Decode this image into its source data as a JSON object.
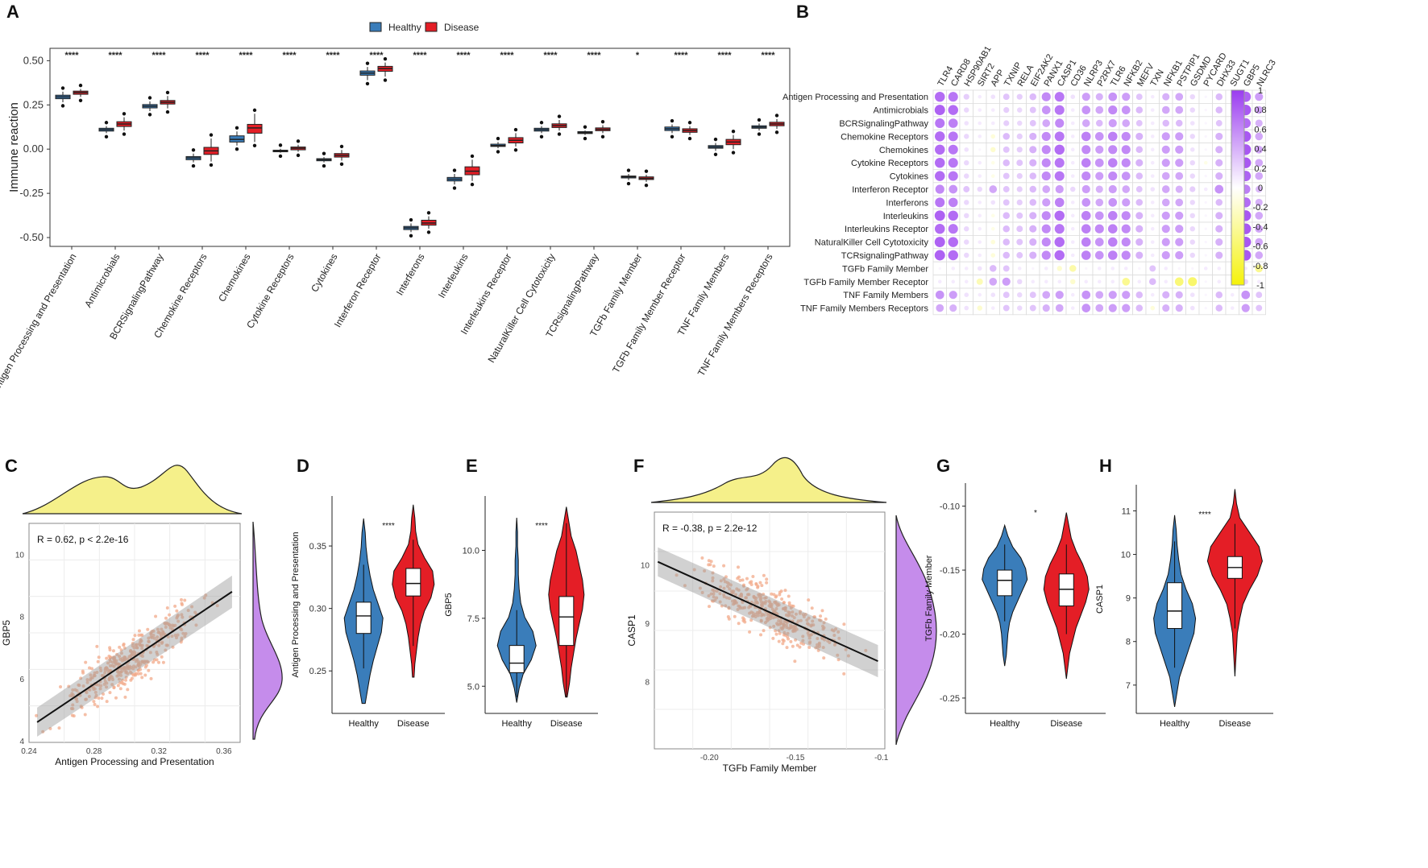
{
  "panel_labels": [
    "A",
    "B",
    "C",
    "D",
    "E",
    "F",
    "G",
    "H"
  ],
  "colors": {
    "healthy": "#3A7DBA",
    "disease": "#E41E26",
    "scatter": "#F2A98A",
    "top_density": "#F5F08A",
    "side_density": "#C58CEB",
    "corr_pos": "#9A3BF0",
    "corr_neg": "#F5F20A"
  },
  "chart_data": [
    {
      "id": "A",
      "type": "box",
      "ylabel": "Immune reaction",
      "xlabel": "",
      "ylim": [
        -0.55,
        0.57
      ],
      "yticks": [
        -0.5,
        -0.25,
        0,
        0.25,
        0.5
      ],
      "ytick_labels": [
        "-0.50",
        "-0.25",
        "0.00",
        "0.25",
        "0.50"
      ],
      "legend": [
        "Healthy",
        "Disease"
      ],
      "legend_position": "top-center",
      "categories": [
        "Antigen Processing and Presentation",
        "Antimicrobials",
        "BCRSignalingPathway",
        "Chemokine Receptors",
        "Chemokines",
        "Cytokine Receptors",
        "Cytokines",
        "Interferon Receptor",
        "Interferons",
        "Interleukins",
        "Interleukins Receptor",
        "NaturalKiller Cell Cytotoxicity",
        "TCRsignalingPathway",
        "TGFb Family Member",
        "TGFb Family Member Receptor",
        "TNF Family Members",
        "TNF Family Members Receptors"
      ],
      "significance": [
        "****",
        "****",
        "****",
        "****",
        "****",
        "****",
        "****",
        "****",
        "****",
        "****",
        "****",
        "****",
        "****",
        "*",
        "****",
        "****",
        "****"
      ],
      "series": [
        {
          "name": "Healthy",
          "boxes": [
            [
              0.265,
              0.285,
              0.295,
              0.305,
              0.325
            ],
            [
              0.09,
              0.102,
              0.11,
              0.118,
              0.13
            ],
            [
              0.215,
              0.233,
              0.243,
              0.252,
              0.27
            ],
            [
              -0.075,
              -0.06,
              -0.05,
              -0.042,
              -0.025
            ],
            [
              0.02,
              0.04,
              0.055,
              0.075,
              0.1
            ],
            [
              -0.02,
              -0.014,
              -0.01,
              -0.006,
              0.002
            ],
            [
              -0.075,
              -0.066,
              -0.06,
              -0.054,
              -0.045
            ],
            [
              0.39,
              0.418,
              0.43,
              0.442,
              0.465
            ],
            [
              -0.47,
              -0.455,
              -0.445,
              -0.437,
              -0.42
            ],
            [
              -0.2,
              -0.18,
              -0.17,
              -0.16,
              -0.14
            ],
            [
              0.005,
              0.015,
              0.02,
              0.028,
              0.04
            ],
            [
              0.09,
              0.102,
              0.11,
              0.118,
              0.13
            ],
            [
              0.08,
              0.088,
              0.093,
              0.099,
              0.105
            ],
            [
              -0.175,
              -0.163,
              -0.157,
              -0.152,
              -0.14
            ],
            [
              0.09,
              0.105,
              0.115,
              0.125,
              0.14
            ],
            [
              -0.01,
              0.005,
              0.012,
              0.02,
              0.035
            ],
            [
              0.105,
              0.118,
              0.125,
              0.132,
              0.145
            ]
          ]
        },
        {
          "name": "Disease",
          "boxes": [
            [
              0.295,
              0.31,
              0.32,
              0.328,
              0.34
            ],
            [
              0.105,
              0.128,
              0.142,
              0.155,
              0.18
            ],
            [
              0.23,
              0.255,
              0.265,
              0.275,
              0.3
            ],
            [
              -0.07,
              -0.03,
              -0.01,
              0.01,
              0.06
            ],
            [
              0.04,
              0.09,
              0.12,
              0.14,
              0.2
            ],
            [
              -0.015,
              -0.004,
              0.005,
              0.012,
              0.025
            ],
            [
              -0.065,
              -0.045,
              -0.035,
              -0.025,
              -0.005
            ],
            [
              0.41,
              0.44,
              0.455,
              0.468,
              0.49
            ],
            [
              -0.45,
              -0.43,
              -0.418,
              -0.402,
              -0.38
            ],
            [
              -0.18,
              -0.145,
              -0.125,
              -0.1,
              -0.06
            ],
            [
              0.015,
              0.035,
              0.05,
              0.065,
              0.09
            ],
            [
              0.105,
              0.122,
              0.133,
              0.143,
              0.165
            ],
            [
              0.09,
              0.104,
              0.112,
              0.12,
              0.135
            ],
            [
              -0.185,
              -0.172,
              -0.165,
              -0.157,
              -0.145
            ],
            [
              0.08,
              0.095,
              0.105,
              0.115,
              0.13
            ],
            [
              0.0,
              0.025,
              0.04,
              0.055,
              0.08
            ],
            [
              0.115,
              0.132,
              0.142,
              0.152,
              0.17
            ]
          ]
        }
      ]
    },
    {
      "id": "B",
      "type": "heatmap",
      "rows": [
        "Antigen Processing and Presentation",
        "Antimicrobials",
        "BCRSignalingPathway",
        "Chemokine Receptors",
        "Chemokines",
        "Cytokine Receptors",
        "Cytokines",
        "Interferon Receptor",
        "Interferons",
        "Interleukins",
        "Interleukins Receptor",
        "NaturalKiller Cell Cytotoxicity",
        "TCRsignalingPathway",
        "TGFb Family Member",
        "TGFb Family Member Receptor",
        "TNF Family Members",
        "TNF Family Members Receptors"
      ],
      "columns": [
        "TLR4",
        "CARD8",
        "HSP90AB1",
        "SIRT2",
        "APP",
        "TXNIP",
        "RELA",
        "EIF2AK2",
        "PANX1",
        "CASP1",
        "CD36",
        "NLRP3",
        "P2RX7",
        "TLR6",
        "NFKB2",
        "MEFV",
        "TXN",
        "NFKB1",
        "PSTPIP1",
        "GSDMD",
        "PYCARD",
        "DHX33",
        "SUGT1",
        "GBP5",
        "NLRC3"
      ],
      "colorbar_ticks": [
        "1",
        "0.8",
        "0.6",
        "0.4",
        "0.2",
        "0",
        "-0.2",
        "-0.4",
        "-0.6",
        "-0.8",
        "-1"
      ],
      "values": [
        [
          0.75,
          0.7,
          0.25,
          0.1,
          0.15,
          0.3,
          0.25,
          0.35,
          0.6,
          0.7,
          0.15,
          0.5,
          0.4,
          0.55,
          0.5,
          0.3,
          0.1,
          0.4,
          0.45,
          0.2,
          0.05,
          0.35,
          0.1,
          0.8,
          0.5
        ],
        [
          0.8,
          0.75,
          0.2,
          0.1,
          0.1,
          0.25,
          0.2,
          0.3,
          0.55,
          0.7,
          0.1,
          0.55,
          0.45,
          0.6,
          0.55,
          0.35,
          0.1,
          0.45,
          0.45,
          0.2,
          0.05,
          0.35,
          0.1,
          0.85,
          0.45
        ],
        [
          0.7,
          0.65,
          0.15,
          0.1,
          0.1,
          0.25,
          0.2,
          0.3,
          0.45,
          0.6,
          0.1,
          0.45,
          0.35,
          0.5,
          0.45,
          0.3,
          0.1,
          0.35,
          0.35,
          0.15,
          0.05,
          0.3,
          0.1,
          0.75,
          0.4
        ],
        [
          0.75,
          0.7,
          0.2,
          0.1,
          -0.15,
          0.35,
          0.25,
          0.4,
          0.6,
          0.7,
          0.1,
          0.65,
          0.55,
          0.65,
          0.6,
          0.4,
          0.1,
          0.5,
          0.5,
          0.2,
          0.05,
          0.4,
          0.1,
          0.85,
          0.45
        ],
        [
          0.75,
          0.7,
          0.15,
          0.05,
          -0.2,
          0.3,
          0.25,
          0.4,
          0.6,
          0.75,
          0.1,
          0.6,
          0.5,
          0.6,
          0.6,
          0.35,
          0.1,
          0.5,
          0.5,
          0.15,
          0.05,
          0.4,
          0.1,
          0.85,
          0.45
        ],
        [
          0.75,
          0.7,
          0.2,
          0.1,
          -0.1,
          0.35,
          0.3,
          0.4,
          0.6,
          0.7,
          0.1,
          0.65,
          0.55,
          0.65,
          0.6,
          0.4,
          0.1,
          0.5,
          0.5,
          0.2,
          -0.1,
          0.4,
          0.1,
          0.85,
          0.45
        ],
        [
          0.75,
          0.7,
          0.2,
          0.1,
          -0.1,
          0.3,
          0.25,
          0.35,
          0.6,
          0.7,
          0.1,
          0.6,
          0.5,
          0.6,
          0.55,
          0.35,
          0.1,
          0.45,
          0.45,
          0.2,
          0.05,
          0.4,
          0.1,
          0.8,
          0.45
        ],
        [
          0.6,
          0.55,
          0.3,
          0.2,
          0.45,
          0.3,
          0.25,
          0.35,
          0.45,
          0.5,
          0.2,
          0.5,
          0.4,
          0.5,
          0.45,
          0.3,
          0.15,
          0.45,
          0.4,
          0.25,
          0.1,
          0.55,
          0.1,
          0.65,
          0.35
        ],
        [
          0.7,
          0.65,
          0.2,
          0.1,
          0.15,
          0.3,
          0.25,
          0.35,
          0.5,
          0.65,
          0.1,
          0.55,
          0.45,
          0.55,
          0.5,
          0.35,
          0.1,
          0.45,
          0.45,
          0.2,
          0.05,
          0.35,
          0.1,
          0.75,
          0.4
        ],
        [
          0.8,
          0.75,
          0.2,
          0.1,
          -0.1,
          0.35,
          0.3,
          0.4,
          0.6,
          0.75,
          0.1,
          0.65,
          0.55,
          0.65,
          0.6,
          0.4,
          0.1,
          0.5,
          0.5,
          0.2,
          0.05,
          0.4,
          0.1,
          0.85,
          0.45
        ],
        [
          0.75,
          0.7,
          0.2,
          0.1,
          -0.1,
          0.35,
          0.3,
          0.4,
          0.6,
          0.7,
          0.1,
          0.65,
          0.6,
          0.65,
          0.6,
          0.4,
          0.1,
          0.5,
          0.5,
          0.2,
          0.05,
          0.4,
          0.1,
          0.85,
          0.45
        ],
        [
          0.8,
          0.75,
          0.2,
          0.1,
          -0.15,
          0.35,
          0.3,
          0.4,
          0.6,
          0.75,
          0.1,
          0.65,
          0.55,
          0.65,
          0.6,
          0.4,
          0.1,
          0.5,
          0.5,
          0.2,
          0.05,
          0.4,
          0.1,
          0.85,
          0.45
        ],
        [
          0.8,
          0.75,
          0.2,
          0.1,
          -0.15,
          0.35,
          0.3,
          0.4,
          0.6,
          0.75,
          0.1,
          0.65,
          0.55,
          0.65,
          0.6,
          0.4,
          0.1,
          0.5,
          0.5,
          0.2,
          0.05,
          0.4,
          0.1,
          0.85,
          0.45
        ],
        [
          0.05,
          0.1,
          0.1,
          0.15,
          0.35,
          0.3,
          0.1,
          0.05,
          0.1,
          -0.2,
          -0.35,
          0.05,
          0.1,
          0.1,
          0.1,
          0.05,
          0.3,
          0.1,
          0.05,
          0.05,
          0.1,
          0.1,
          0.05,
          0.1,
          -0.45
        ],
        [
          0.1,
          0.1,
          0.1,
          -0.3,
          0.45,
          0.5,
          0.2,
          0.1,
          0.1,
          0.1,
          -0.2,
          0.1,
          0.1,
          0.1,
          -0.45,
          0.1,
          0.35,
          0.1,
          -0.55,
          -0.6,
          0.05,
          0.1,
          0.05,
          0.2,
          0.1
        ],
        [
          0.55,
          0.5,
          0.15,
          0.1,
          0.15,
          0.3,
          0.2,
          0.3,
          0.45,
          0.5,
          0.1,
          0.55,
          0.45,
          0.5,
          0.5,
          0.35,
          0.1,
          0.4,
          0.4,
          0.15,
          0.05,
          0.35,
          0.1,
          0.55,
          0.3
        ],
        [
          0.45,
          0.4,
          0.15,
          -0.2,
          0.1,
          0.3,
          0.2,
          0.3,
          0.4,
          0.45,
          0.1,
          0.55,
          0.45,
          0.5,
          0.5,
          0.35,
          -0.15,
          0.4,
          0.4,
          0.15,
          0.05,
          0.35,
          0.1,
          0.5,
          0.3
        ]
      ]
    },
    {
      "id": "C",
      "type": "scatter",
      "xlabel": "Antigen Processing and Presentation",
      "ylabel": "GBP5",
      "xlim": [
        0.24,
        0.37
      ],
      "ylim": [
        3.95,
        11.0
      ],
      "xticks": [
        "0.24",
        "0.28",
        "0.32",
        "0.36"
      ],
      "yticks": [
        "4",
        "6",
        "8",
        "10"
      ],
      "annotation": "R = 0.62, p < 2.2e-16",
      "fit": {
        "x": [
          0.245,
          0.365
        ],
        "y": [
          4.6,
          8.8
        ]
      }
    },
    {
      "id": "D",
      "type": "violin",
      "ylabel": "Antigen Processing and Presentation",
      "categories": [
        "Healthy",
        "Disease"
      ],
      "ylim": [
        0.216,
        0.39
      ],
      "yticks": [
        "0.25",
        "0.30",
        "0.35"
      ],
      "significance": "****",
      "boxes": [
        [
          0.252,
          0.28,
          0.294,
          0.305,
          0.335
        ],
        [
          0.27,
          0.31,
          0.32,
          0.332,
          0.355
        ]
      ]
    },
    {
      "id": "E",
      "type": "violin",
      "ylabel": "GBP5",
      "categories": [
        "Healthy",
        "Disease"
      ],
      "ylim": [
        4.0,
        12.0
      ],
      "yticks": [
        "5.0",
        "7.5",
        "10.0"
      ],
      "significance": "****",
      "boxes": [
        [
          4.6,
          5.5,
          5.85,
          6.5,
          7.8
        ],
        [
          4.6,
          6.5,
          7.55,
          8.3,
          11.0
        ]
      ]
    },
    {
      "id": "F",
      "type": "scatter",
      "xlabel": "TGFb Family Member",
      "ylabel": "CASP1",
      "xlim": [
        -0.232,
        -0.098
      ],
      "ylim": [
        6.85,
        10.9
      ],
      "xticks": [
        "-0.20",
        "-0.15",
        "-0.1"
      ],
      "yticks": [
        "8",
        "9",
        "10"
      ],
      "annotation": "R = -0.38, p = 2.2e-12",
      "fit": {
        "x": [
          -0.23,
          -0.102
        ],
        "y": [
          10.05,
          8.35
        ]
      }
    },
    {
      "id": "G",
      "type": "violin",
      "ylabel": "TGFb Family Member",
      "categories": [
        "Healthy",
        "Disease"
      ],
      "ylim": [
        -0.262,
        -0.082
      ],
      "yticks": [
        "-0.10",
        "-0.15",
        "-0.20",
        "-0.25"
      ],
      "significance": "*",
      "boxes": [
        [
          -0.19,
          -0.17,
          -0.158,
          -0.15,
          -0.13
        ],
        [
          -0.2,
          -0.178,
          -0.165,
          -0.153,
          -0.13
        ]
      ]
    },
    {
      "id": "H",
      "type": "violin",
      "ylabel": "CASP1",
      "categories": [
        "Healthy",
        "Disease"
      ],
      "ylim": [
        6.35,
        11.6
      ],
      "yticks": [
        "7",
        "8",
        "9",
        "10",
        "11"
      ],
      "significance": "****",
      "boxes": [
        [
          7.4,
          8.3,
          8.7,
          9.35,
          10.3
        ],
        [
          8.3,
          9.45,
          9.7,
          9.95,
          10.7
        ]
      ]
    }
  ]
}
